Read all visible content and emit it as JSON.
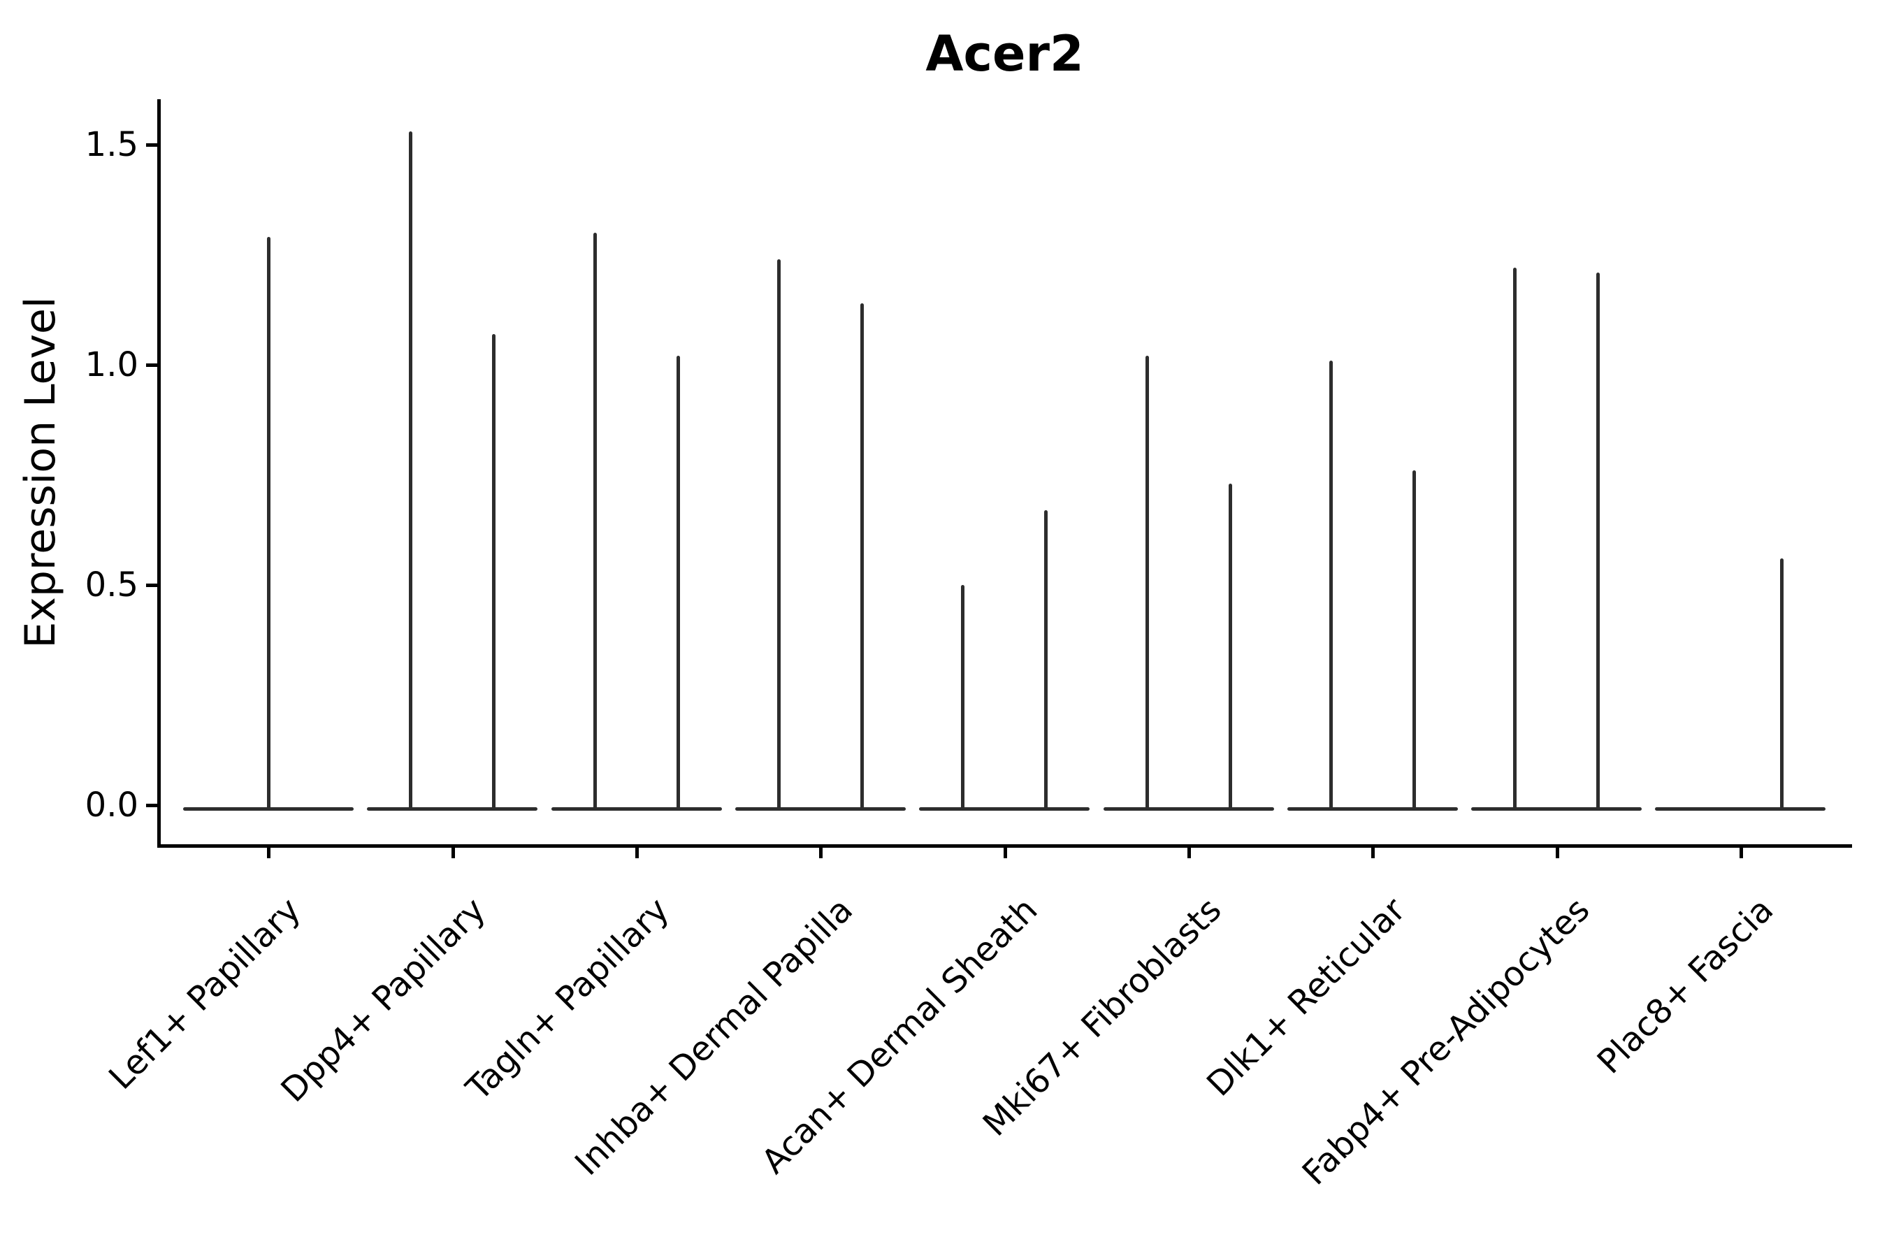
{
  "chart_data": {
    "type": "violin",
    "title": "Acer2",
    "ylabel": "Expression Level",
    "xlabel": "",
    "legend": "none",
    "grid": false,
    "categories": [
      "Lef1+ Papillary",
      "Dpp4+ Papillary",
      "Tagln+ Papillary",
      "Inhba+ Dermal Papilla",
      "Acan+ Dermal Sheath",
      "Mki67+ Fibroblasts",
      "Dlk1+ Reticular",
      "Fabp4+ Pre-Adipocytes",
      "Plac8+ Fascia"
    ],
    "y_tick_labels": [
      "0.0",
      "0.5",
      "1.0",
      "1.5"
    ],
    "y_ticks": [
      0.0,
      0.5,
      1.0,
      1.5
    ],
    "ylim": [
      -0.09,
      1.6
    ],
    "description": "Narrow-spike violin plot; each violin has its bulk flattened at expression 0 with a thin tail reaching its maximum value.",
    "violins": [
      {
        "category": "Lef1+ Papillary",
        "slot": "center",
        "min": 0.0,
        "max": 1.29
      },
      {
        "category": "Dpp4+ Papillary",
        "slot": "left",
        "min": 0.0,
        "max": 1.53
      },
      {
        "category": "Dpp4+ Papillary",
        "slot": "right",
        "min": 0.0,
        "max": 1.07
      },
      {
        "category": "Tagln+ Papillary",
        "slot": "left",
        "min": 0.0,
        "max": 1.3
      },
      {
        "category": "Tagln+ Papillary",
        "slot": "right",
        "min": 0.0,
        "max": 1.02
      },
      {
        "category": "Inhba+ Dermal Papilla",
        "slot": "left",
        "min": 0.0,
        "max": 1.24
      },
      {
        "category": "Inhba+ Dermal Papilla",
        "slot": "right",
        "min": 0.0,
        "max": 1.14
      },
      {
        "category": "Acan+ Dermal Sheath",
        "slot": "left",
        "min": 0.0,
        "max": 0.5
      },
      {
        "category": "Acan+ Dermal Sheath",
        "slot": "right",
        "min": 0.0,
        "max": 0.67
      },
      {
        "category": "Mki67+ Fibroblasts",
        "slot": "left",
        "min": 0.0,
        "max": 1.02
      },
      {
        "category": "Mki67+ Fibroblasts",
        "slot": "right",
        "min": 0.0,
        "max": 0.73
      },
      {
        "category": "Dlk1+ Reticular",
        "slot": "left",
        "min": 0.0,
        "max": 1.01
      },
      {
        "category": "Dlk1+ Reticular",
        "slot": "right",
        "min": 0.0,
        "max": 0.76
      },
      {
        "category": "Fabp4+ Pre-Adipocytes",
        "slot": "left",
        "min": 0.0,
        "max": 1.22
      },
      {
        "category": "Fabp4+ Pre-Adipocytes",
        "slot": "right",
        "min": 0.0,
        "max": 1.21
      },
      {
        "category": "Plac8+ Fascia",
        "slot": "right",
        "min": 0.0,
        "max": 0.56
      }
    ],
    "colors": {
      "violin": "#2d2d2d",
      "axis": "#000000",
      "background": "#ffffff"
    }
  }
}
